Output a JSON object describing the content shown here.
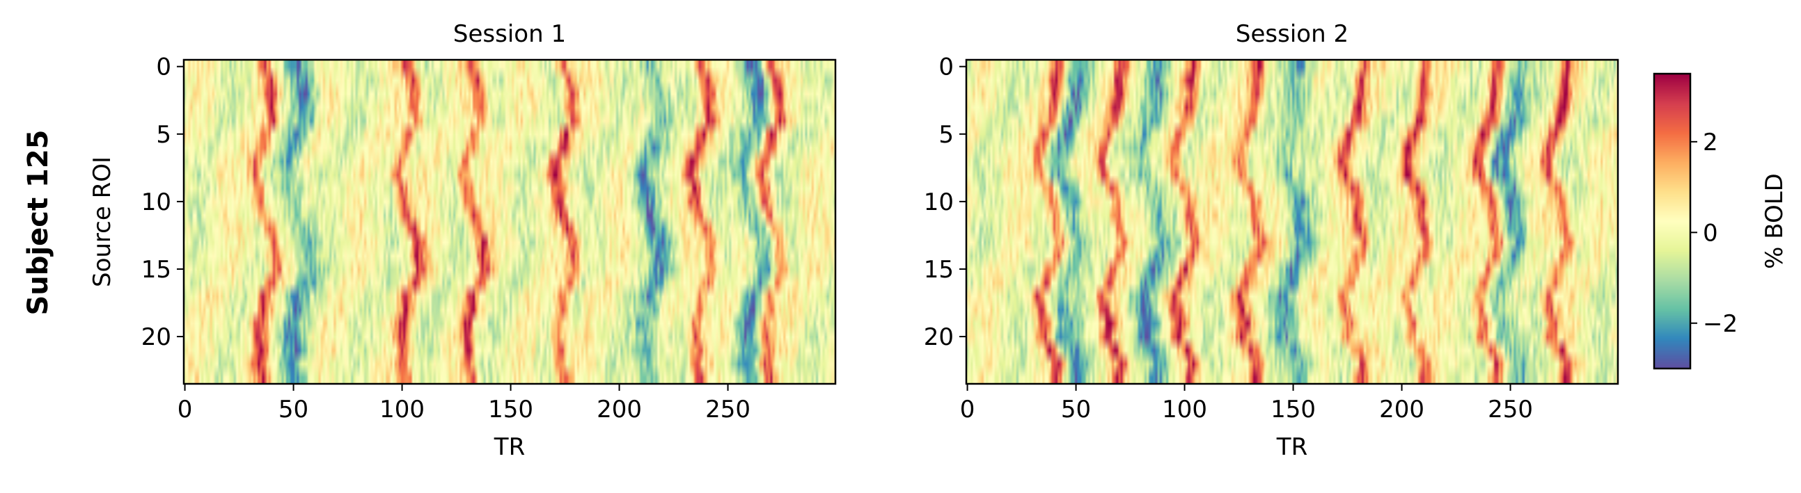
{
  "figure": {
    "row_label": "Subject 125"
  },
  "chart_data": [
    {
      "type": "heatmap",
      "title": "Session 1",
      "xlabel": "TR",
      "ylabel": "Source ROI",
      "xlim": [
        0,
        299
      ],
      "ylim": [
        23.5,
        -0.5
      ],
      "n_rows": 24,
      "n_cols": 300,
      "xticks": [
        0,
        50,
        100,
        150,
        200,
        250
      ],
      "yticks": [
        0,
        5,
        10,
        15,
        20
      ],
      "cmap": "Spectral_r",
      "peak_TRs": [
        37,
        103,
        133,
        175,
        238,
        270
      ],
      "trough_TRs": [
        52,
        215,
        262
      ]
    },
    {
      "type": "heatmap",
      "title": "Session 2",
      "xlabel": "TR",
      "ylabel": "",
      "xlim": [
        0,
        299
      ],
      "ylim": [
        23.5,
        -0.5
      ],
      "n_rows": 24,
      "n_cols": 300,
      "xticks": [
        0,
        50,
        100,
        150,
        200,
        250
      ],
      "yticks": [
        0,
        5,
        10,
        15,
        20
      ],
      "cmap": "Spectral_r",
      "peak_TRs": [
        38,
        67,
        100,
        130,
        178,
        207,
        240,
        272
      ],
      "trough_TRs": [
        47,
        85,
        150,
        250
      ]
    }
  ],
  "colorbar": {
    "label": "% BOLD",
    "vmin": -3.0,
    "vmax": 3.5,
    "ticks": [
      -2,
      0,
      2
    ],
    "tick_labels": [
      "−2",
      "0",
      "2"
    ]
  }
}
